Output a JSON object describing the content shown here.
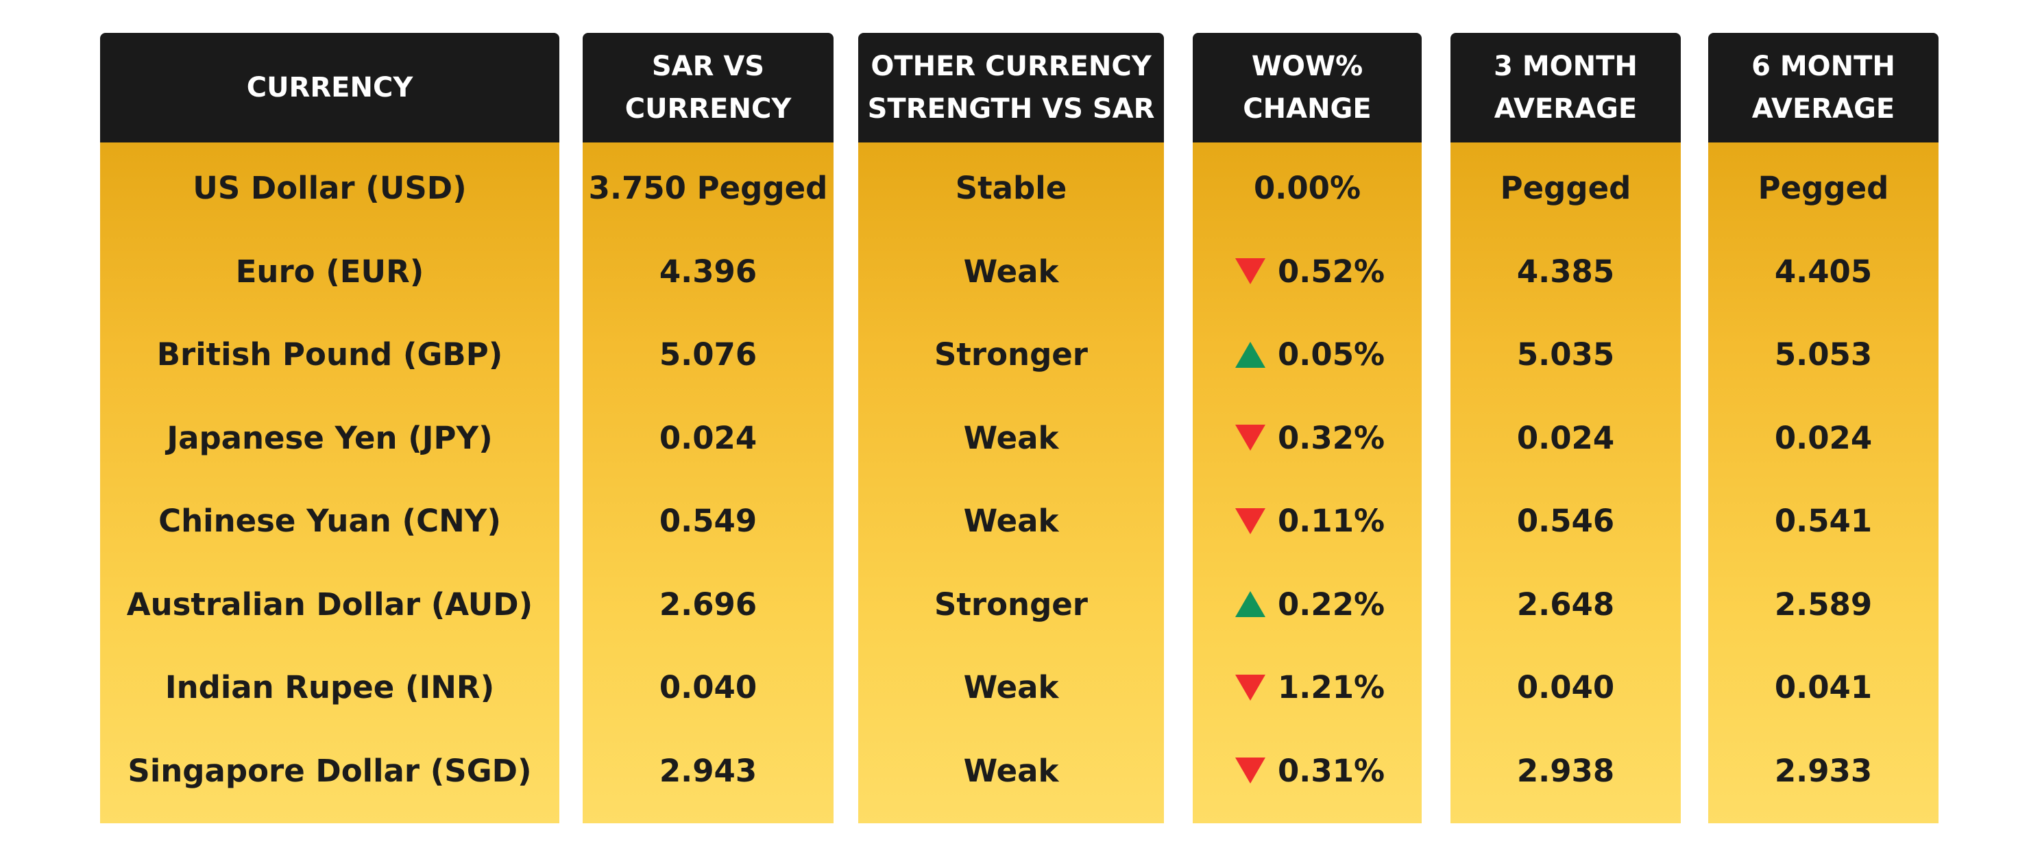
{
  "table": {
    "headers": {
      "currency": [
        "CURRENCY"
      ],
      "sar_vs_currency": [
        "SAR VS",
        "CURRENCY"
      ],
      "strength": [
        "OTHER CURRENCY",
        "STRENGTH VS SAR"
      ],
      "wow": [
        "WOW%",
        "CHANGE"
      ],
      "avg3": [
        "3 MONTH",
        "AVERAGE"
      ],
      "avg6": [
        "6 MONTH",
        "AVERAGE"
      ]
    },
    "rows": [
      {
        "currency": "US Dollar (USD)",
        "sar": "3.750 Pegged",
        "strength": "Stable",
        "wow": "0.00%",
        "wow_dir": "none",
        "avg3": "Pegged",
        "avg6": "Pegged"
      },
      {
        "currency": "Euro (EUR)",
        "sar": "4.396",
        "strength": "Weak",
        "wow": "0.52%",
        "wow_dir": "down",
        "avg3": "4.385",
        "avg6": "4.405"
      },
      {
        "currency": "British Pound (GBP)",
        "sar": "5.076",
        "strength": "Stronger",
        "wow": "0.05%",
        "wow_dir": "up",
        "avg3": "5.035",
        "avg6": "5.053"
      },
      {
        "currency": "Japanese Yen (JPY)",
        "sar": "0.024",
        "strength": "Weak",
        "wow": "0.32%",
        "wow_dir": "down",
        "avg3": "0.024",
        "avg6": "0.024"
      },
      {
        "currency": "Chinese Yuan (CNY)",
        "sar": "0.549",
        "strength": "Weak",
        "wow": "0.11%",
        "wow_dir": "down",
        "avg3": "0.546",
        "avg6": "0.541"
      },
      {
        "currency": "Australian Dollar (AUD)",
        "sar": "2.696",
        "strength": "Stronger",
        "wow": "0.22%",
        "wow_dir": "up",
        "avg3": "2.648",
        "avg6": "2.589"
      },
      {
        "currency": "Indian Rupee (INR)",
        "sar": "0.040",
        "strength": "Weak",
        "wow": "1.21%",
        "wow_dir": "down",
        "avg3": "0.040",
        "avg6": "0.041"
      },
      {
        "currency": "Singapore Dollar (SGD)",
        "sar": "2.943",
        "strength": "Weak",
        "wow": "0.31%",
        "wow_dir": "down",
        "avg3": "2.938",
        "avg6": "2.933"
      }
    ]
  },
  "colors": {
    "header_bg": "#1a1a1a",
    "header_text": "#ffffff",
    "body_gradient_top": "#e6a817",
    "body_gradient_bottom": "#fedd66",
    "up_arrow": "#12945a",
    "down_arrow": "#ef2c2c"
  },
  "icons": {
    "up": "triangle-up-icon",
    "down": "triangle-down-icon"
  }
}
